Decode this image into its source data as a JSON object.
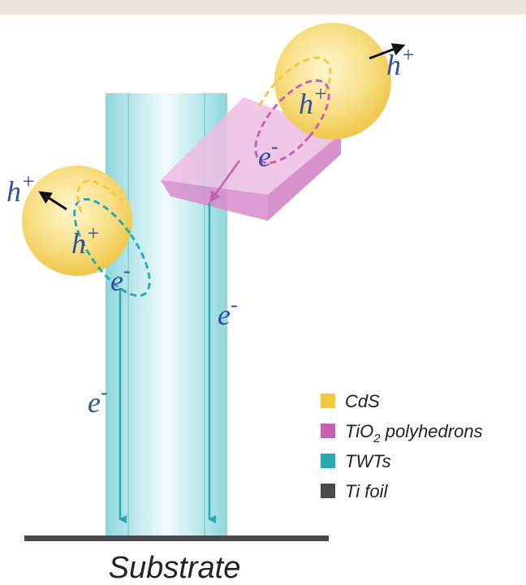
{
  "carriers": [
    {
      "base": "h",
      "sup": "+"
    },
    {
      "base": "h",
      "sup": "+"
    },
    {
      "base": "e",
      "sup": "-"
    },
    {
      "base": "h",
      "sup": "+"
    },
    {
      "base": "h",
      "sup": "+"
    },
    {
      "base": "e",
      "sup": "-"
    },
    {
      "base": "e",
      "sup": "-"
    },
    {
      "base": "e",
      "sup": "-"
    }
  ],
  "legend": [
    {
      "label": "CdS",
      "color": "#f5c842"
    },
    {
      "label": "TiO",
      "sub": "2",
      "rest": " polyhedrons",
      "color": "#c660b0"
    },
    {
      "label": "TWTs",
      "color": "#2aa9b3"
    },
    {
      "label": "Ti foil",
      "color": "#4a4a4c"
    }
  ],
  "substrate": "Substrate"
}
